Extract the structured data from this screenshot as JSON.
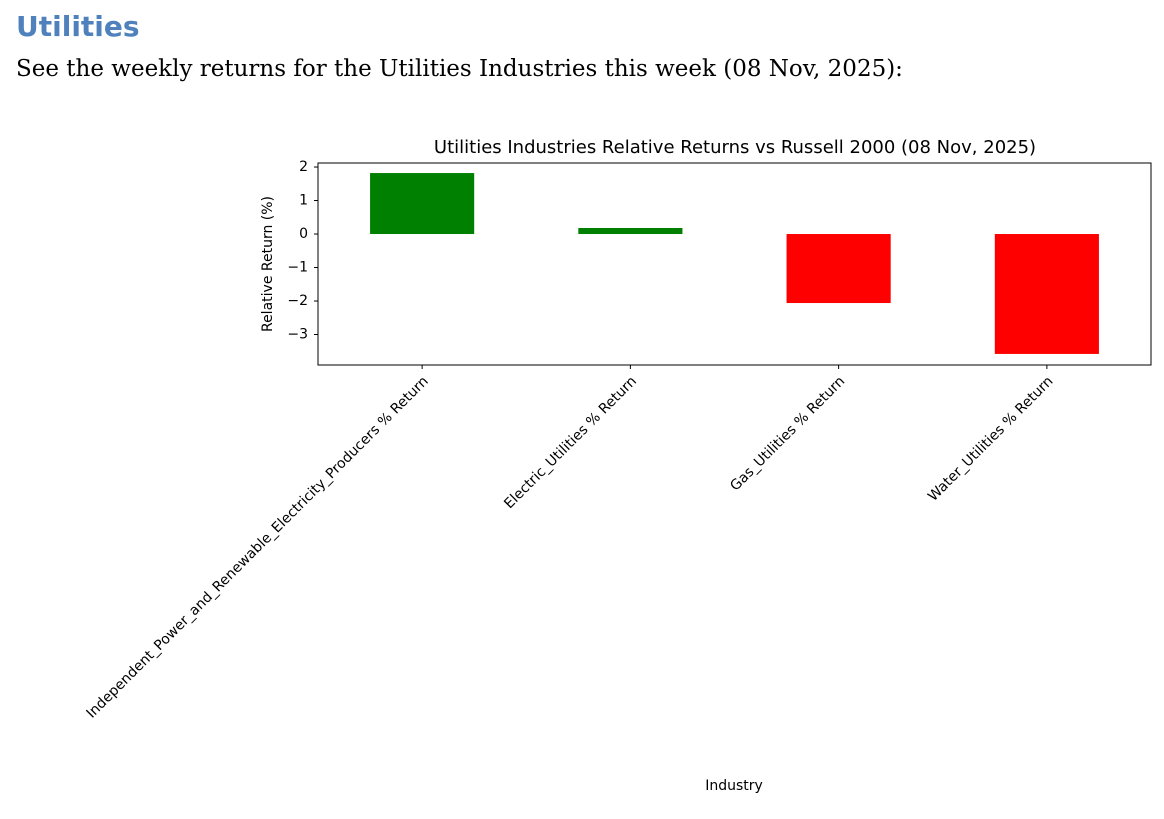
{
  "header": {
    "title": "Utilities",
    "intro": "See the weekly returns for the Utilities Industries this week (08 Nov, 2025):"
  },
  "chart_data": {
    "type": "bar",
    "title": "Utilities Industries Relative Returns vs Russell 2000 (08 Nov, 2025)",
    "xlabel": "Industry",
    "ylabel": "Relative Return (%)",
    "categories": [
      "Independent_Power_and_Renewable_Electricity_Producers % Return",
      "Electric_Utilities % Return",
      "Gas_Utilities % Return",
      "Water_Utilities % Return"
    ],
    "values": [
      1.82,
      0.18,
      -2.06,
      -3.58
    ],
    "colors": [
      "#008000",
      "#008000",
      "#ff0000",
      "#ff0000"
    ],
    "ylim": [
      -3.91,
      2.12
    ],
    "yticks": [
      {
        "value": -3,
        "label": "−3"
      },
      {
        "value": -2,
        "label": "−2"
      },
      {
        "value": -1,
        "label": "−1"
      },
      0,
      1,
      2
    ]
  }
}
